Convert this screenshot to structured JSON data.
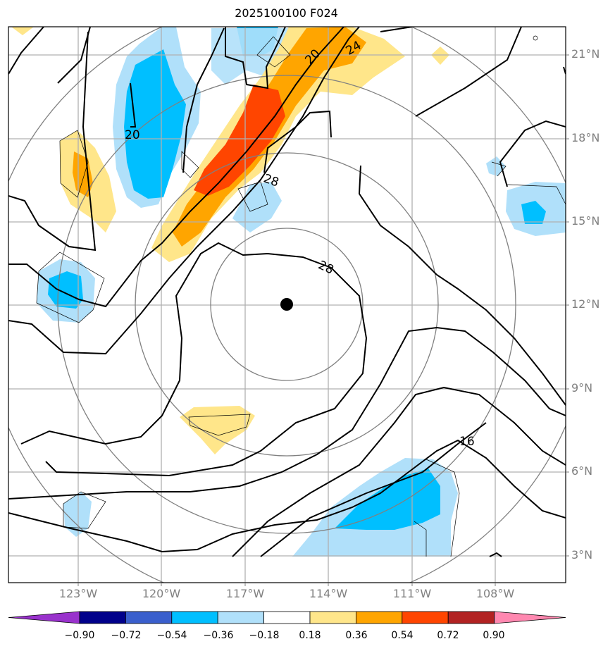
{
  "title": "2025100100 F024",
  "lat_labels": [
    "21°N",
    "18°N",
    "15°N",
    "12°N",
    "9°N",
    "6°N",
    "3°N"
  ],
  "lon_labels": [
    "123°W",
    "120°W",
    "117°W",
    "114°W",
    "111°W",
    "108°W"
  ],
  "contour_labels": [
    "20",
    "24",
    "20",
    "28",
    "28",
    "16"
  ],
  "colorbar": {
    "colors": [
      "#9932cc",
      "#00008b",
      "#3a5fcd",
      "#00bfff",
      "#b0e0fa",
      "#ffffff",
      "#ffe68a",
      "#ffa500",
      "#ff4500",
      "#b22222",
      "#ff88b0"
    ],
    "tick_labels": [
      "−0.90",
      "−0.72",
      "−0.54",
      "−0.36",
      "−0.18",
      "0.18",
      "0.36",
      "0.54",
      "0.72",
      "0.90"
    ]
  },
  "center_marker": {
    "lat": 12.0,
    "lon": -115.5
  }
}
